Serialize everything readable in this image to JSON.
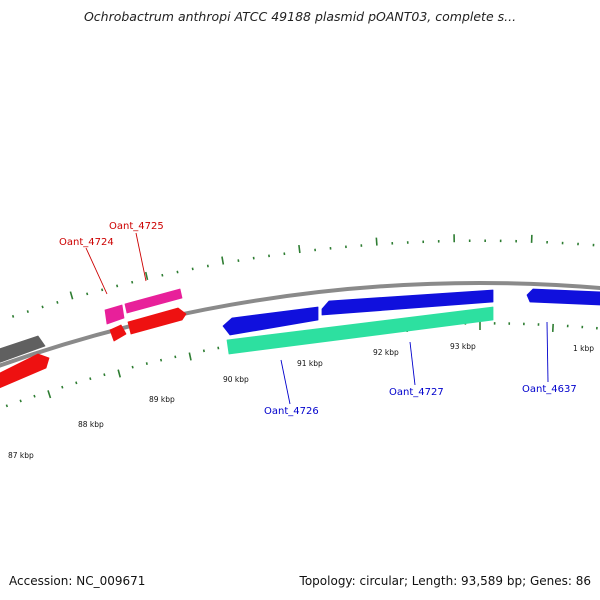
{
  "title": "Ochrobactrum anthropi ATCC 49188 plasmid pOANT03, complete s...",
  "footer": {
    "accession": "Accession: NC_009671",
    "summary": "Topology: circular; Length: 93,589 bp; Genes: 86"
  },
  "colors": {
    "backbone": "#8a8a8a",
    "tick": "#2e7d32",
    "red_gene": "#ee1111",
    "pink_gene": "#e8209a",
    "blue_gene": "#1010dd",
    "cyan_gene": "#2de0a0",
    "gray_gene": "#606060",
    "label_red": "#cc0000",
    "label_blue": "#0000cc"
  },
  "scale_labels": [
    "87 kbp",
    "88 kbp",
    "89 kbp",
    "90 kbp",
    "91 kbp",
    "92 kbp",
    "93 kbp",
    "1 kbp"
  ],
  "gene_labels": [
    {
      "name": "Oant_4725",
      "color": "label_red"
    },
    {
      "name": "Oant_4724",
      "color": "label_red"
    },
    {
      "name": "Oant_4726",
      "color": "label_blue"
    },
    {
      "name": "Oant_4727",
      "color": "label_blue"
    },
    {
      "name": "Oant_4637",
      "color": "label_blue"
    }
  ]
}
